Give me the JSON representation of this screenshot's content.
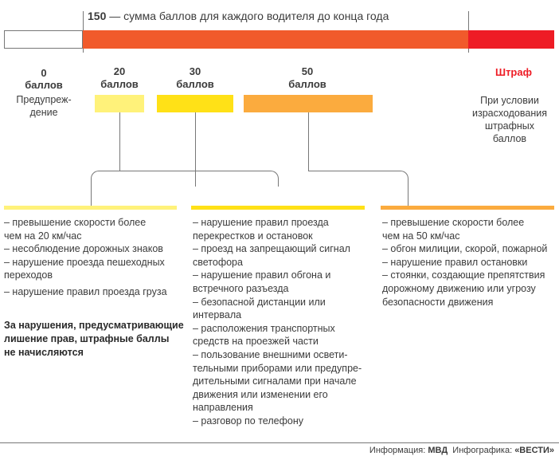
{
  "header": {
    "number": "150",
    "text": " — сумма баллов для каждого водителя до конца года"
  },
  "colors": {
    "bar_orange": "#f15a2b",
    "bar_red": "#ee1c25",
    "box_20": "#fff27a",
    "box_30": "#ffe117",
    "box_50": "#fbab3e",
    "fine_text": "#ee1c25"
  },
  "levels": [
    {
      "points": "0",
      "unit": "баллов",
      "desc_line1": "Предупреж-",
      "desc_line2": "дение"
    },
    {
      "points": "20",
      "unit": "баллов"
    },
    {
      "points": "30",
      "unit": "баллов"
    },
    {
      "points": "50",
      "unit": "баллов"
    }
  ],
  "fine": {
    "label": "Штраф",
    "desc": [
      "При условии",
      "израсходования",
      "штрафных",
      "баллов"
    ]
  },
  "columns": [
    {
      "items": [
        "– превышение скорости более",
        "чем на 20 км/час",
        "– несоблюдение дорожных знаков",
        "– нарушение проезда пешеходных",
        "переходов",
        "– нарушение правил проезда груза"
      ],
      "note": [
        "За нарушения, предусматривающие",
        "лишение прав, штрафные баллы",
        "не начисляются"
      ]
    },
    {
      "items": [
        "– нарушение правил проезда",
        "перекрестков и остановок",
        "– проезд на запрещающий сигнал",
        "светофора",
        "– нарушение правил обгона и",
        "встречного разъезда",
        "– безопасной дистанции или интервала",
        "– расположения транспортных",
        "средств на проезжей части",
        "– пользование внешними освети-",
        "тельными приборами или предупре-",
        "дительными сигналами при начале",
        "движения или изменении его",
        "направления",
        "– разговор по телефону"
      ]
    },
    {
      "items": [
        "– превышение скорости более",
        "чем на 50 км/час",
        "– обгон милиции, скорой, пожарной",
        "– нарушение правил остановки",
        "– стоянки, создающие препятствия",
        "дорожному движению или угрозу",
        "безопасности движения"
      ]
    }
  ],
  "footer": {
    "info_label": "Информация: ",
    "info_source": "МВД",
    "graphic_label": "  Инфографика: ",
    "graphic_source": "«ВЕСТИ»"
  }
}
